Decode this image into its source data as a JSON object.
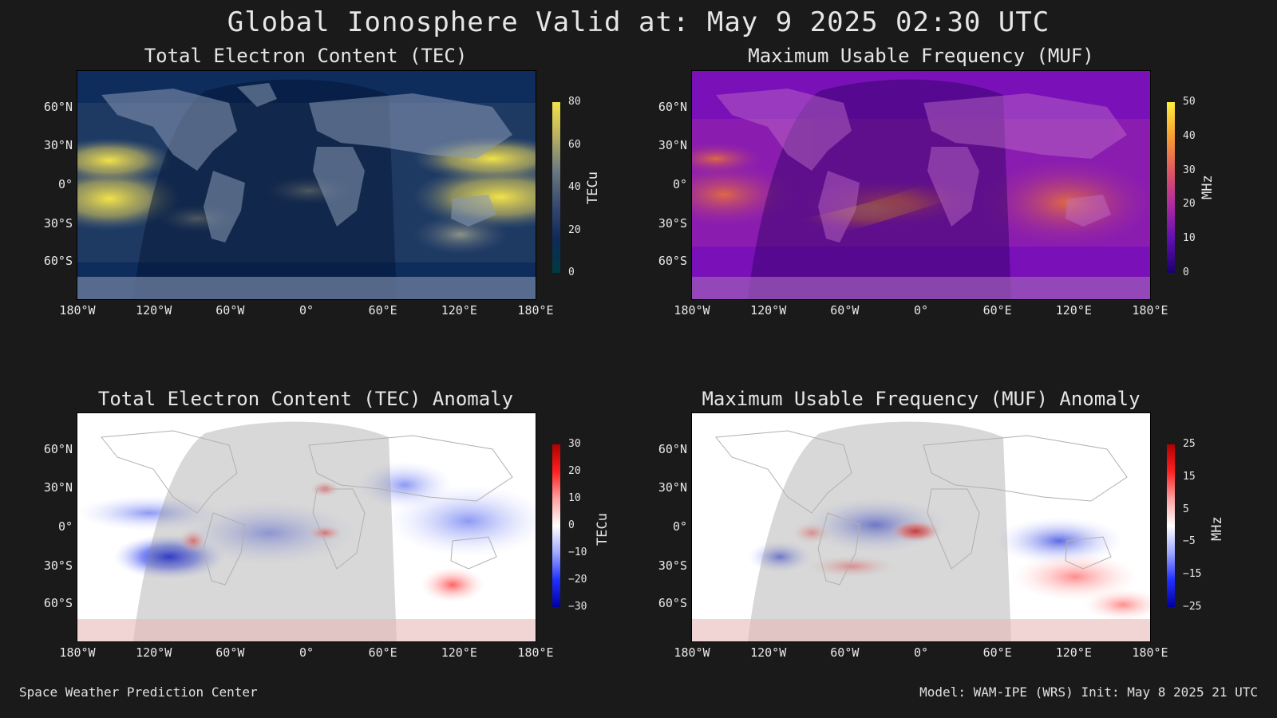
{
  "header": {
    "title": "Global Ionosphere Valid at: May 9 2025 02:30 UTC"
  },
  "axes": {
    "lat_ticks": [
      "60°N",
      "30°N",
      "0°",
      "30°S",
      "60°S"
    ],
    "lon_ticks": [
      "180°W",
      "120°W",
      "60°W",
      "0°",
      "60°E",
      "120°E",
      "180°E"
    ]
  },
  "panels": {
    "tec": {
      "title": "Total Electron Content (TEC)",
      "unit": "TECu",
      "ticks": [
        "80",
        "60",
        "40",
        "20",
        "0"
      ]
    },
    "muf": {
      "title": "Maximum Usable Frequency (MUF)",
      "unit": "MHz",
      "ticks": [
        "50",
        "40",
        "30",
        "20",
        "10",
        "0"
      ]
    },
    "tec_anomaly": {
      "title": "Total Electron Content (TEC) Anomaly",
      "unit": "TECu",
      "ticks": [
        "30",
        "20",
        "10",
        "0",
        "−10",
        "−20",
        "−30"
      ]
    },
    "muf_anomaly": {
      "title": "Maximum Usable Frequency (MUF) Anomaly",
      "unit": "MHz",
      "ticks": [
        "25",
        "15",
        "5",
        "−5",
        "−15",
        "−25"
      ]
    }
  },
  "colors": {
    "background": "#1a1a1a",
    "tec_low": "#0d2a5a",
    "tec_high": "#f2e24a",
    "muf_low": "#2a0070",
    "muf_high": "#ffd84a",
    "anomaly_neg": "#0018ff",
    "anomaly_pos": "#e00000"
  },
  "footer": {
    "left": "Space Weather Prediction Center",
    "right": "Model: WAM-IPE (WRS) Init: May 8 2025 21 UTC"
  }
}
